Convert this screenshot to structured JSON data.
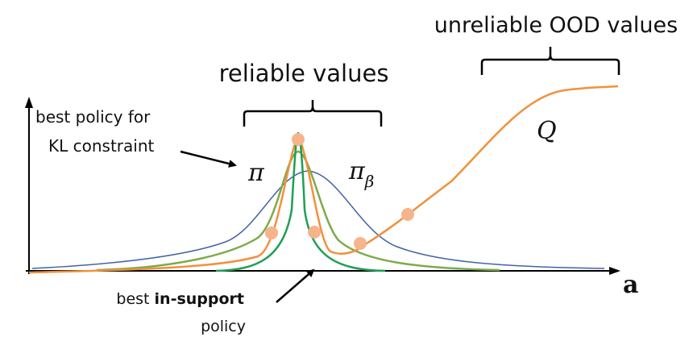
{
  "labels": {
    "reliable": "reliable values",
    "unreliable": "unreliable OOD values",
    "kl_line1": "best policy for",
    "kl_line2": "KL constraint",
    "in_support_prefix": "best ",
    "in_support_bold": "in-support",
    "in_support_line2": "policy",
    "pi": "π",
    "pi_beta_base": "π",
    "pi_beta_sub": "β",
    "q": "Q",
    "x_axis": "a"
  },
  "colors": {
    "q_curve": "#F0913C",
    "q_points": "#F5B48C",
    "pi_beta": "#4563A8",
    "pi": "#7DAA4B",
    "in_support": "#1F9F55",
    "axis": "#000000",
    "text": "#111111"
  }
}
